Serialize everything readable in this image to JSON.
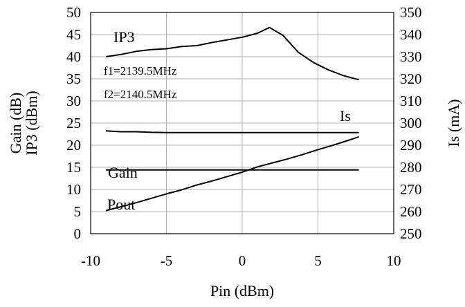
{
  "chart_data": {
    "type": "line",
    "xlabel": "Pin (dBm)",
    "ylabel_left": [
      "Gain (dB)",
      "IP3 (dBm)"
    ],
    "ylabel_right": "Is (mA)",
    "xlim": [
      -10,
      10
    ],
    "xticks": [
      "-10",
      "-5",
      "0",
      "5",
      "10"
    ],
    "ylim_left": [
      0,
      50
    ],
    "yticks_left": [
      "0",
      "5",
      "10",
      "15",
      "20",
      "25",
      "30",
      "35",
      "40",
      "45",
      "50"
    ],
    "ylim_right": [
      250,
      350
    ],
    "yticks_right": [
      "250",
      "260",
      "270",
      "280",
      "290",
      "300",
      "310",
      "320",
      "330",
      "340",
      "350"
    ],
    "grid": true,
    "annotations": {
      "ip3": "IP3",
      "f1": "f1=2139.5MHz",
      "f2": "f2=2140.5MHz",
      "is": "Is",
      "gain": "Gain",
      "pout": "Pout"
    },
    "series": [
      {
        "name": "IP3",
        "axis": "left",
        "x": [
          -9,
          -8,
          -7,
          -6,
          -5,
          -4,
          -3,
          -2,
          -1,
          0,
          1,
          1.8,
          2.7,
          3.7,
          4.7,
          5.7,
          6.7,
          7.7
        ],
        "y": [
          40.0,
          40.5,
          41.2,
          41.6,
          41.8,
          42.3,
          42.5,
          43.2,
          43.8,
          44.4,
          45.3,
          46.6,
          44.8,
          41.0,
          38.7,
          37.0,
          35.7,
          34.8
        ]
      },
      {
        "name": "Is",
        "axis": "right",
        "x": [
          -9,
          -8,
          -7,
          -6,
          -5,
          -4,
          -3,
          -2,
          -1,
          0,
          1,
          2,
          3,
          4,
          5,
          6,
          7,
          7.7
        ],
        "y": [
          296.5,
          296.1,
          296.1,
          295.8,
          295.7,
          295.7,
          295.7,
          295.7,
          295.7,
          295.7,
          295.7,
          295.7,
          295.7,
          295.7,
          295.7,
          295.7,
          295.7,
          295.7
        ]
      },
      {
        "name": "Gain",
        "axis": "left",
        "x": [
          -9,
          7.7
        ],
        "y": [
          14.4,
          14.4
        ]
      },
      {
        "name": "Pout",
        "axis": "left",
        "x": [
          -9,
          -8,
          -7,
          -6,
          -5,
          -4,
          -3,
          -2,
          -1,
          0,
          1,
          2,
          3,
          4,
          5,
          6,
          7,
          7.7
        ],
        "y": [
          5.2,
          6.1,
          7.0,
          8.0,
          9.0,
          9.9,
          11.0,
          11.9,
          12.9,
          13.9,
          15.1,
          16.0,
          16.9,
          17.9,
          19.0,
          20.0,
          21.1,
          21.9
        ]
      }
    ]
  }
}
